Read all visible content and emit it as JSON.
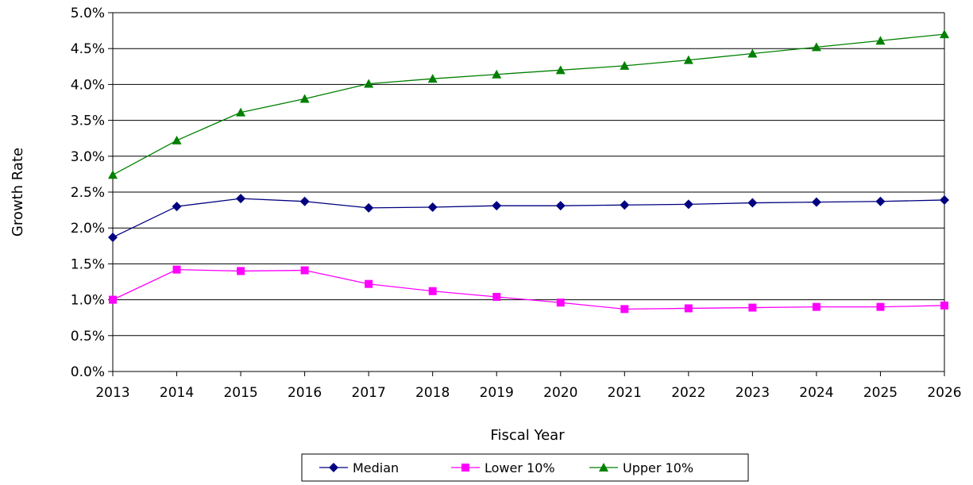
{
  "chart_data": {
    "type": "line",
    "title": "",
    "xlabel": "Fiscal Year",
    "ylabel": "Growth Rate",
    "ylim": [
      0,
      5.0
    ],
    "y_ticks": [
      "0.0%",
      "0.5%",
      "1.0%",
      "1.5%",
      "2.0%",
      "2.5%",
      "3.0%",
      "3.5%",
      "4.0%",
      "4.5%",
      "5.0%"
    ],
    "grid": "horizontal",
    "legend_position": "bottom",
    "categories": [
      "2013",
      "2014",
      "2015",
      "2016",
      "2017",
      "2018",
      "2019",
      "2020",
      "2021",
      "2022",
      "2023",
      "2024",
      "2025",
      "2026"
    ],
    "series": [
      {
        "name": "Median",
        "color": "#000080",
        "marker": "diamond",
        "values": [
          1.87,
          2.3,
          2.41,
          2.37,
          2.28,
          2.29,
          2.31,
          2.31,
          2.32,
          2.33,
          2.35,
          2.36,
          2.37,
          2.39
        ]
      },
      {
        "name": "Lower 10%",
        "color": "#FF00FF",
        "marker": "square",
        "values": [
          1.0,
          1.42,
          1.4,
          1.41,
          1.22,
          1.12,
          1.04,
          0.96,
          0.87,
          0.88,
          0.89,
          0.9,
          0.9,
          0.92
        ]
      },
      {
        "name": "Upper 10%",
        "color": "#008000",
        "marker": "triangle",
        "values": [
          2.74,
          3.22,
          3.61,
          3.8,
          4.01,
          4.08,
          4.14,
          4.2,
          4.26,
          4.34,
          4.43,
          4.52,
          4.61,
          4.7
        ]
      }
    ]
  }
}
